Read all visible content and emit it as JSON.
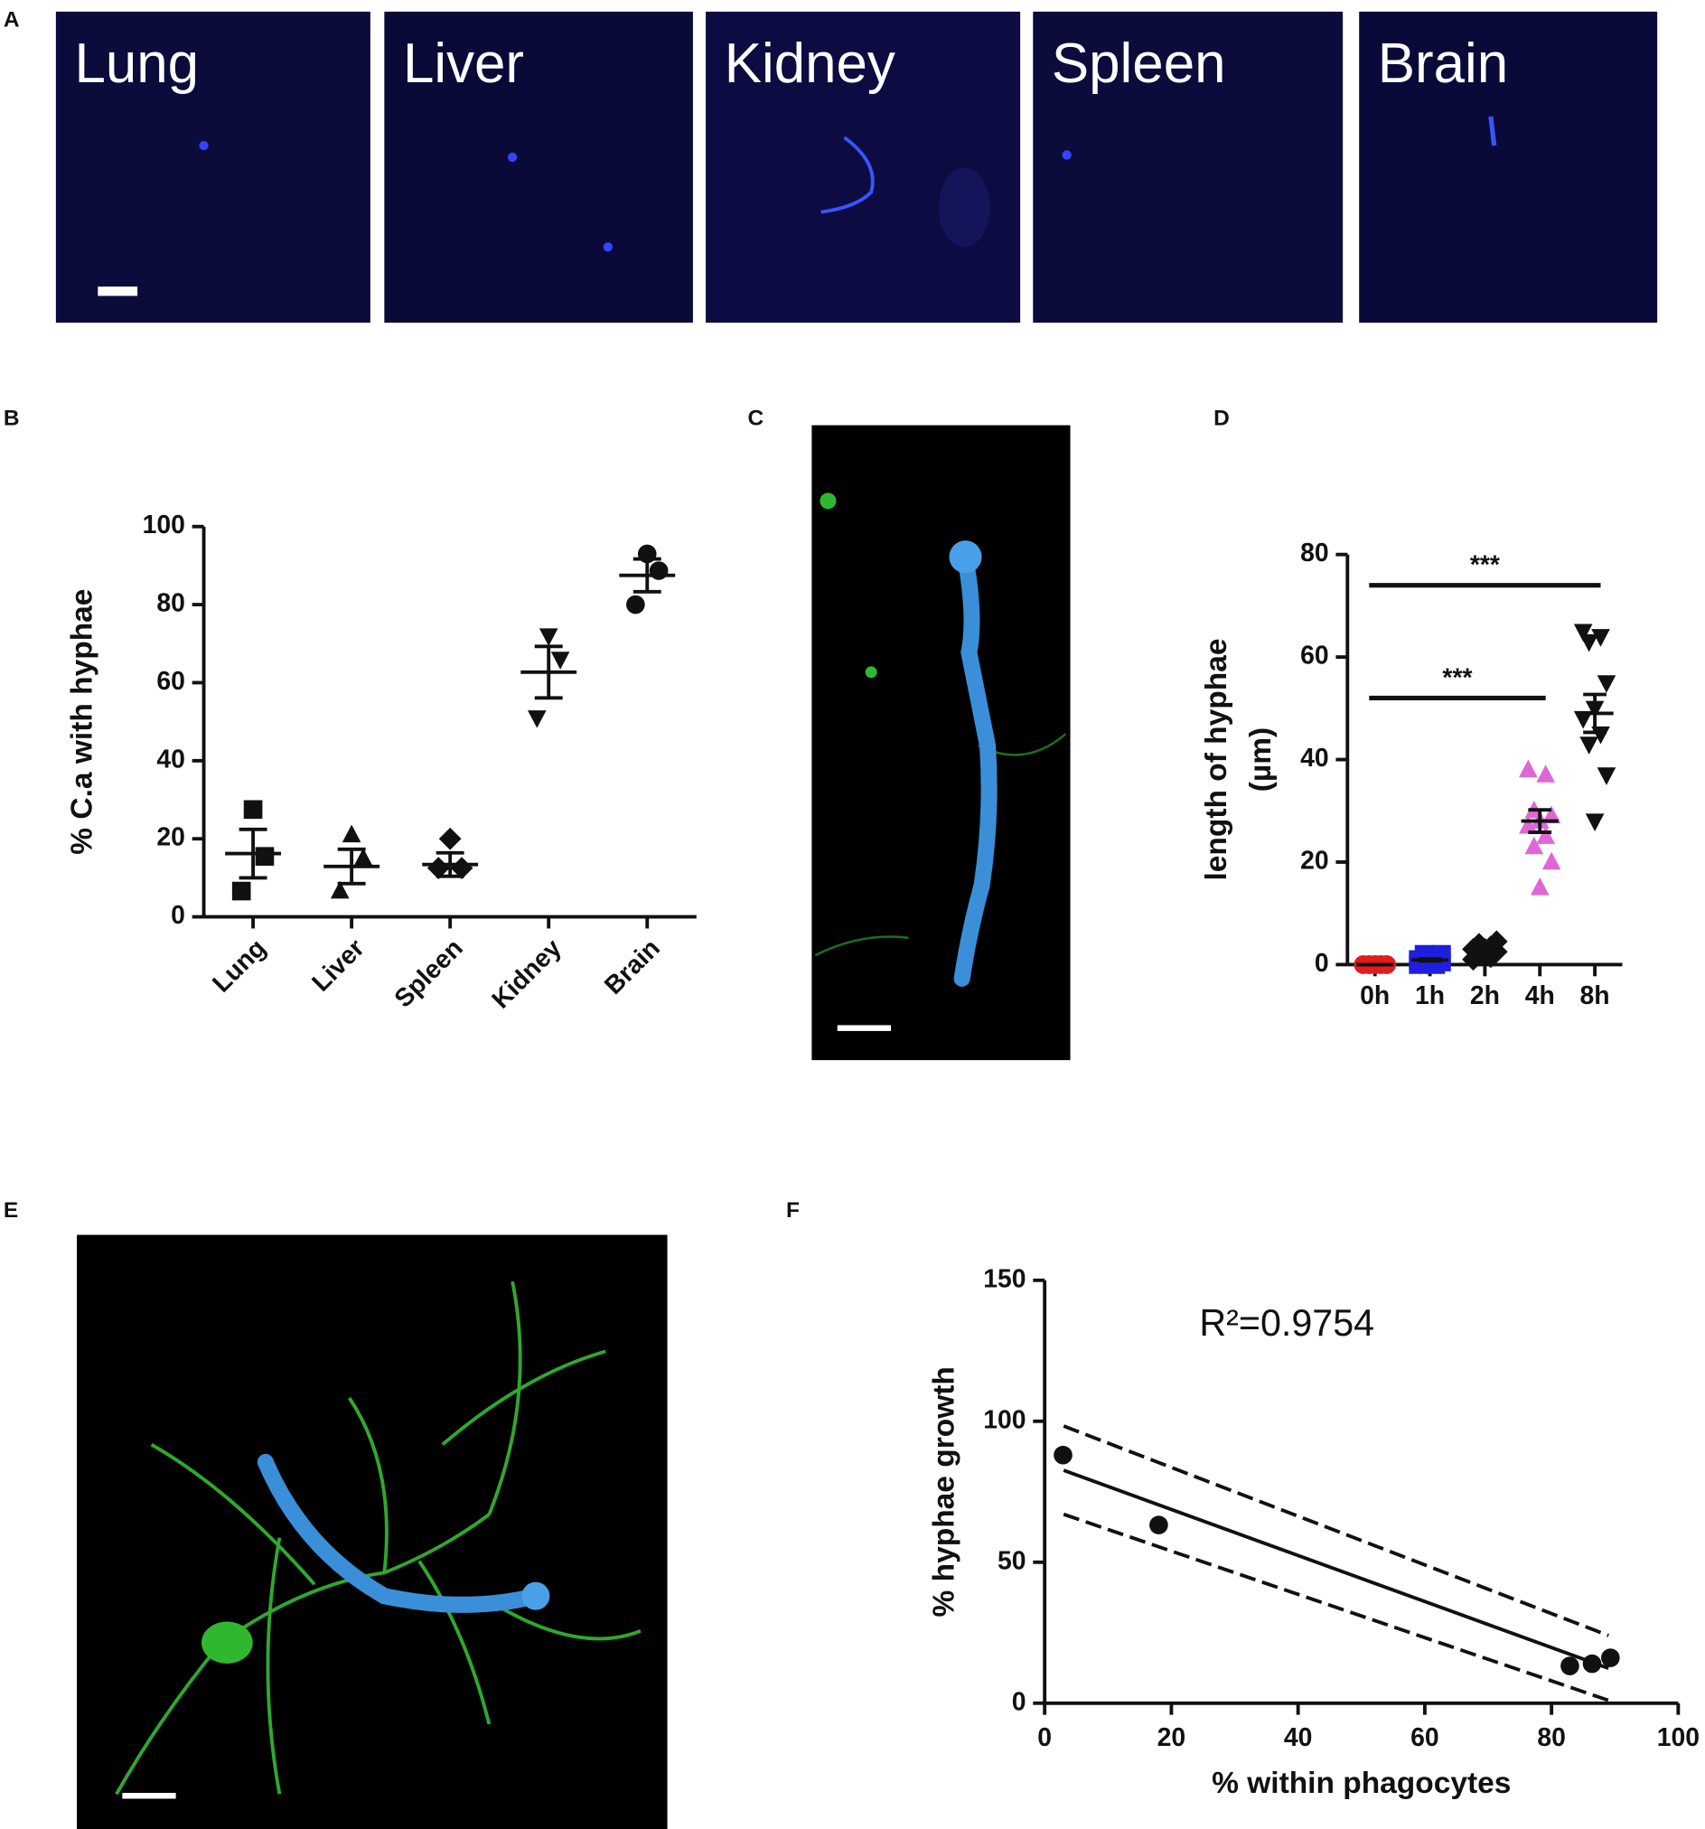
{
  "panels": {
    "A": {
      "label": "A",
      "images": [
        "Lung",
        "Liver",
        "Kidney",
        "Spleen",
        "Brain"
      ]
    },
    "C": {
      "label": "C"
    },
    "E": {
      "label": "E"
    }
  },
  "chart_data": [
    {
      "type": "dotplot",
      "label": "B",
      "y_label": [
        "% C.a with hyphae"
      ],
      "categories": [
        "Lung",
        "Liver",
        "Spleen",
        "Kidney",
        "Brain"
      ],
      "points": [
        [
          27.5,
          15.5,
          6.6
        ],
        [
          21,
          15,
          6.6
        ],
        [
          20,
          12.5,
          12.5
        ],
        [
          72,
          66,
          51
        ],
        [
          93,
          88.7,
          80
        ]
      ],
      "markers": [
        "square",
        "triangle",
        "diamond",
        "triangle-down",
        "circle"
      ],
      "colors": [
        "#111111",
        "#111111",
        "#111111",
        "#111111",
        "#111111"
      ],
      "means": [
        16.2,
        12.9,
        13.4,
        62.7,
        87.5
      ],
      "sems": [
        6.2,
        4.4,
        3,
        6.6,
        4.2
      ],
      "ylim": [
        0,
        100
      ],
      "yticks": [
        0,
        20,
        40,
        60,
        80,
        100
      ]
    },
    {
      "type": "dotplot",
      "label": "D",
      "y_label": [
        "length of hyphae",
        "(µm)"
      ],
      "categories": [
        "0h",
        "1h",
        "2h",
        "4h",
        "8h"
      ],
      "points": [
        [
          0,
          0,
          0,
          0,
          0,
          0,
          0,
          0,
          0,
          0
        ],
        [
          0,
          0,
          0.5,
          0.5,
          1,
          1,
          1.5,
          2,
          2,
          0.5
        ],
        [
          1,
          1.5,
          2,
          2.5,
          3,
          3,
          3.5,
          4,
          4.5,
          2
        ],
        [
          38,
          37,
          30,
          29,
          28,
          27,
          25,
          23,
          20,
          15
        ],
        [
          65,
          64,
          63,
          55,
          50,
          48,
          45,
          43,
          37,
          28
        ]
      ],
      "markers": [
        "circle",
        "square",
        "diamond",
        "triangle",
        "triangle-down"
      ],
      "colors": [
        "#e41a1c",
        "#1f1fe0",
        "#111111",
        "#e066d6",
        "#111111"
      ],
      "means": [
        0,
        0.9,
        2.8,
        28,
        49
      ],
      "sems": [
        0,
        0.2,
        0.4,
        2.2,
        3.7
      ],
      "annotations": [
        {
          "text": "***",
          "from": 0,
          "to": 4,
          "y": 74
        },
        {
          "text": "***",
          "from": 0,
          "to": 3,
          "y": 52
        }
      ],
      "ylim": [
        0,
        80
      ],
      "yticks": [
        0,
        20,
        40,
        60,
        80
      ]
    },
    {
      "type": "scatter",
      "label": "F",
      "x_label": "% within phagocytes",
      "y_label": [
        "% hyphae growth"
      ],
      "annotation": "R²=0.9754",
      "x": [
        2.9,
        18,
        82.9,
        86.4,
        89.3
      ],
      "values": [
        88,
        63.2,
        13.2,
        14,
        16.1
      ],
      "color": "#111111",
      "fit": {
        "x": [
          3,
          89
        ],
        "y": [
          82.6,
          12.4
        ]
      },
      "ci_upper": {
        "x": [
          3,
          89
        ],
        "y": [
          98.3,
          24
        ]
      },
      "ci_lower": {
        "x": [
          3,
          89
        ],
        "y": [
          67,
          1
        ]
      },
      "xlim": [
        0,
        100
      ],
      "xticks": [
        0,
        20,
        40,
        60,
        80,
        100
      ],
      "ylim": [
        0,
        150
      ],
      "yticks": [
        0,
        50,
        100,
        150
      ]
    }
  ]
}
